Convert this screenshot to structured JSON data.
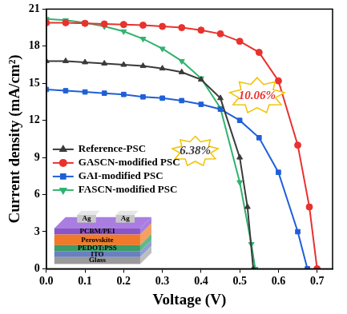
{
  "chart_data": {
    "type": "line",
    "x_label": "Voltage (V)",
    "y_label": "Current density (mA/cm²)",
    "xlim": [
      0,
      0.74
    ],
    "ylim": [
      0,
      21
    ],
    "xticks": [
      {
        "value": 0,
        "label": "0.0"
      },
      {
        "value": 0.1,
        "label": "0.1"
      },
      {
        "value": 0.2,
        "label": "0.2"
      },
      {
        "value": 0.3,
        "label": "0.3"
      },
      {
        "value": 0.4,
        "label": "0.4"
      },
      {
        "value": 0.5,
        "label": "0.5"
      },
      {
        "value": 0.6,
        "label": "0.6"
      },
      {
        "value": 0.7,
        "label": "0.7"
      }
    ],
    "yticks": [
      0,
      3,
      6,
      9,
      12,
      15,
      18,
      21
    ],
    "grid": false,
    "legend": "left",
    "series": [
      {
        "name": "Reference-PSC",
        "color": "#3a3a3a",
        "marker": "triangle",
        "line_style": "solid",
        "x": [
          0,
          0.05,
          0.1,
          0.15,
          0.2,
          0.25,
          0.3,
          0.35,
          0.4,
          0.45,
          0.5,
          0.52,
          0.535
        ],
        "values": [
          16.8,
          16.8,
          16.7,
          16.6,
          16.5,
          16.4,
          16.2,
          15.9,
          15.3,
          13.8,
          9.0,
          5.0,
          0
        ]
      },
      {
        "name": "GASCN-modified PSC",
        "color": "#e8322e",
        "marker": "circle",
        "line_style": "solid",
        "x": [
          0,
          0.05,
          0.1,
          0.15,
          0.2,
          0.25,
          0.3,
          0.35,
          0.4,
          0.45,
          0.5,
          0.55,
          0.6,
          0.65,
          0.68,
          0.7
        ],
        "values": [
          19.9,
          19.9,
          19.85,
          19.8,
          19.75,
          19.7,
          19.6,
          19.5,
          19.3,
          19.0,
          18.4,
          17.5,
          15.2,
          10.0,
          5.0,
          0
        ]
      },
      {
        "name": "GAI-modified PSC",
        "color": "#1f5fd8",
        "marker": "square",
        "line_style": "solid",
        "x": [
          0,
          0.05,
          0.1,
          0.15,
          0.2,
          0.25,
          0.3,
          0.35,
          0.4,
          0.45,
          0.5,
          0.55,
          0.6,
          0.65,
          0.675
        ],
        "values": [
          14.5,
          14.4,
          14.3,
          14.2,
          14.1,
          13.9,
          13.8,
          13.6,
          13.3,
          12.9,
          12.0,
          10.6,
          7.8,
          3.0,
          0
        ]
      },
      {
        "name": "FASCN-modified PSC",
        "color": "#2fb36e",
        "marker": "triangle-down",
        "line_style": "solid",
        "x": [
          0,
          0.05,
          0.1,
          0.15,
          0.2,
          0.25,
          0.3,
          0.35,
          0.4,
          0.45,
          0.5,
          0.53,
          0.54
        ],
        "values": [
          20.2,
          20.1,
          19.9,
          19.6,
          19.2,
          18.6,
          17.8,
          16.8,
          15.4,
          13.0,
          7.0,
          2.0,
          0
        ]
      }
    ],
    "annotations": [
      {
        "text": "10.06%",
        "x": 0.545,
        "y": 14.0,
        "color": "#e8322e"
      },
      {
        "text": "6.38%",
        "x": 0.385,
        "y": 9.5,
        "color": "#3a3a3a"
      }
    ],
    "inset": {
      "electrodes": [
        "Ag",
        "Ag"
      ],
      "layers": [
        "PCBM/PEI",
        "Perovskite",
        "PEDOT:PSS",
        "ITO",
        "Glass"
      ]
    }
  }
}
